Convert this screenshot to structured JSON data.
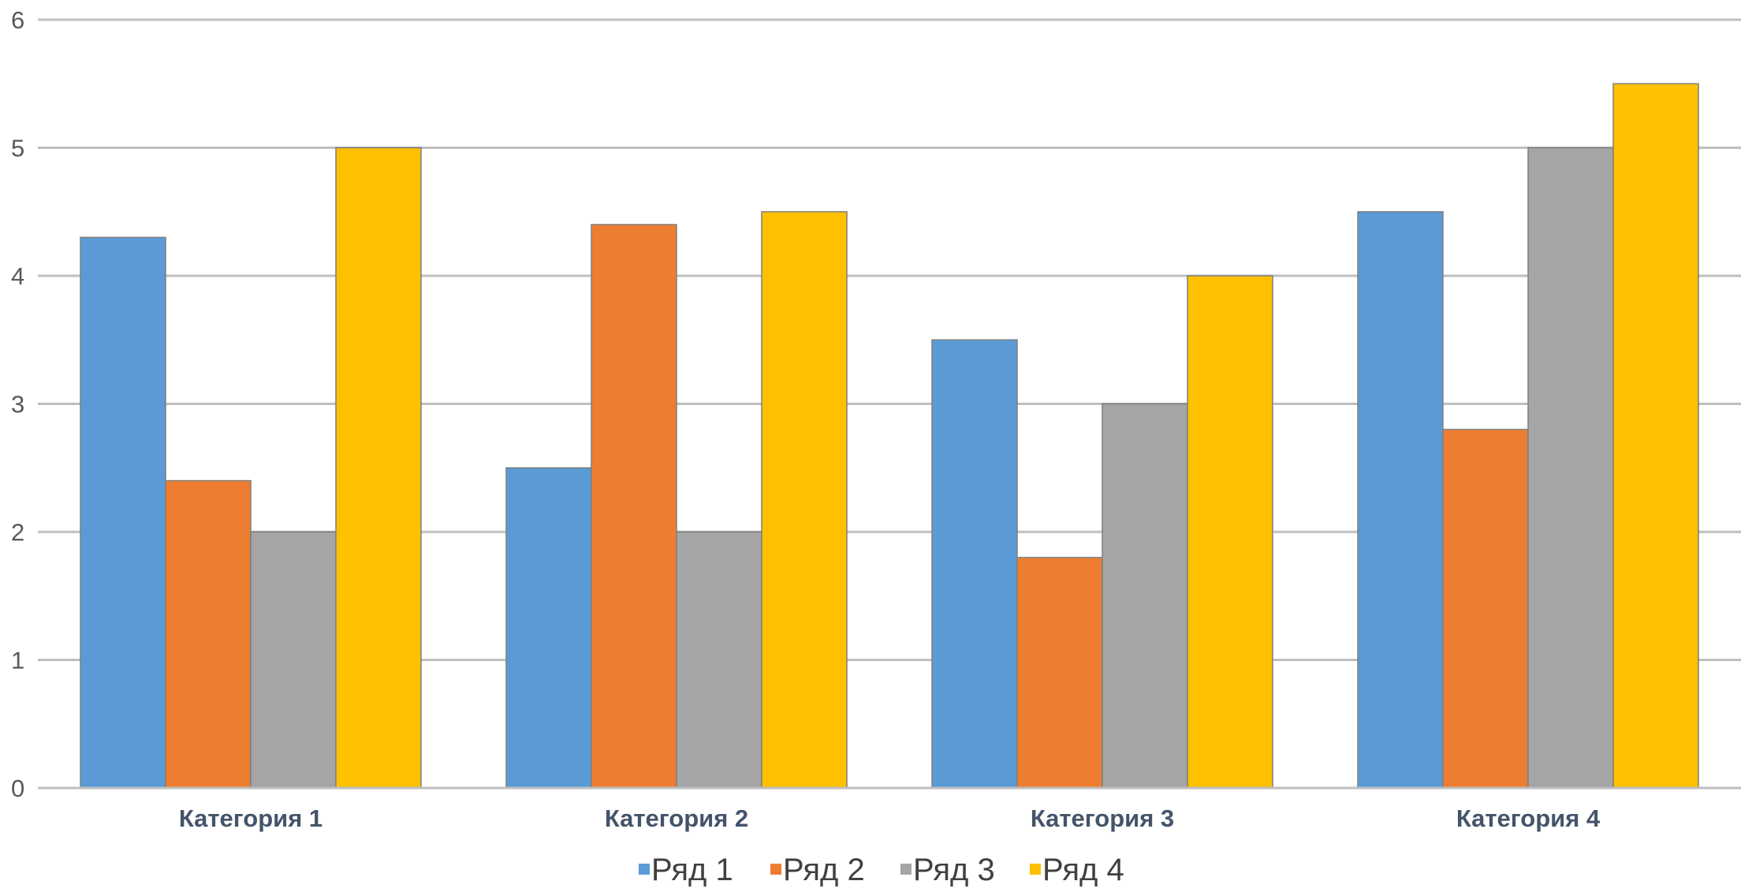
{
  "chart_data": {
    "type": "bar",
    "title": "",
    "xlabel": "",
    "ylabel": "",
    "categories": [
      "Категория 1",
      "Категория 2",
      "Категория 3",
      "Категория 4"
    ],
    "series": [
      {
        "name": "Ряд 1",
        "color": "#5B9BD5",
        "values": [
          4.3,
          2.5,
          3.5,
          4.5
        ]
      },
      {
        "name": "Ряд 2",
        "color": "#ED7D31",
        "values": [
          2.4,
          4.4,
          1.8,
          2.8
        ]
      },
      {
        "name": "Ряд 3",
        "color": "#A5A5A5",
        "values": [
          2.0,
          2.0,
          3.0,
          5.0
        ]
      },
      {
        "name": "Ряд 4",
        "color": "#FFC000",
        "values": [
          5.0,
          4.5,
          4.0,
          5.5
        ]
      }
    ],
    "ylim": [
      0,
      6
    ],
    "yticks": [
      "0",
      "1",
      "2",
      "3",
      "4",
      "5",
      "6"
    ],
    "grid": true,
    "legend_position": "bottom",
    "category_label_color": "#44546A",
    "gridline_color": "#BFBFBF"
  }
}
